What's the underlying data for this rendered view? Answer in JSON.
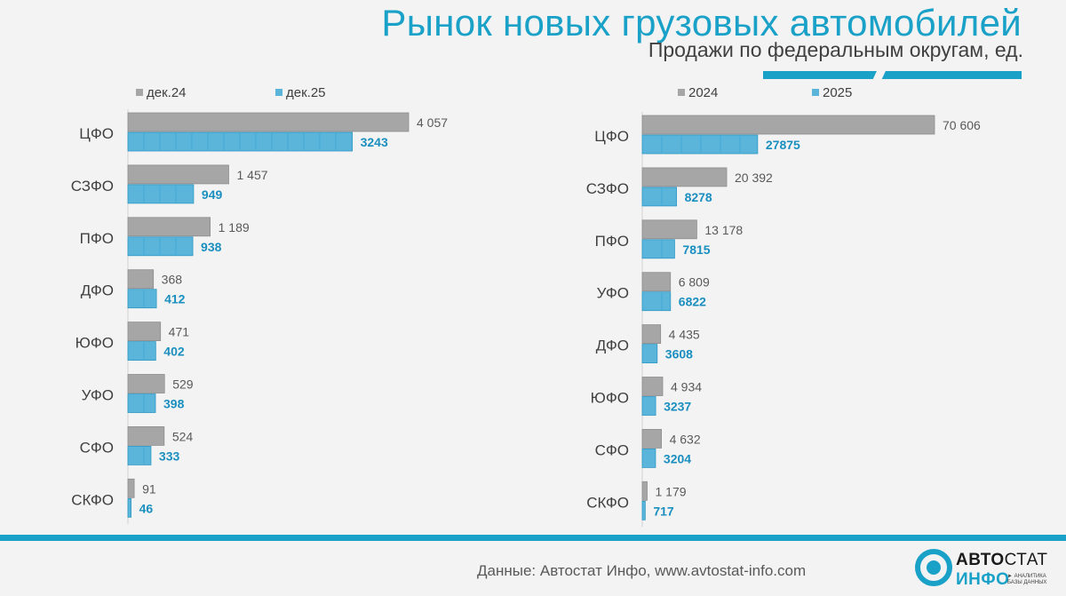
{
  "header": {
    "title": "Рынок новых грузовых автомобилей",
    "subtitle": "Продажи по федеральным округам, ед."
  },
  "colors": {
    "accent": "#1aa1c8",
    "series_prev": "#a6a6a6",
    "series_curr": "#5bb5db",
    "text": "#404040"
  },
  "chart_data": [
    {
      "type": "bar",
      "orientation": "horizontal",
      "categories": [
        "ЦФО",
        "СЗФО",
        "ПФО",
        "ДФО",
        "ЮФО",
        "УФО",
        "СФО",
        "СКФО"
      ],
      "series": [
        {
          "name": "дек.24",
          "values": [
            4057,
            1457,
            1189,
            368,
            471,
            529,
            524,
            91
          ],
          "labels": [
            "4 057",
            "1 457",
            "1 189",
            "368",
            "471",
            "529",
            "524",
            "91"
          ]
        },
        {
          "name": "дек.25",
          "values": [
            3243,
            949,
            938,
            412,
            402,
            398,
            333,
            46
          ],
          "labels": [
            "3243",
            "949",
            "938",
            "412",
            "402",
            "398",
            "333",
            "46"
          ]
        }
      ],
      "legend_position": "top-left"
    },
    {
      "type": "bar",
      "orientation": "horizontal",
      "categories": [
        "ЦФО",
        "СЗФО",
        "ПФО",
        "УФО",
        "ДФО",
        "ЮФО",
        "СФО",
        "СКФО"
      ],
      "series": [
        {
          "name": "2024",
          "values": [
            70606,
            20392,
            13178,
            6809,
            4435,
            4934,
            4632,
            1179
          ],
          "labels": [
            "70 606",
            "20 392",
            "13 178",
            "6 809",
            "4 435",
            "4 934",
            "4 632",
            "1 179"
          ]
        },
        {
          "name": "2025",
          "values": [
            27875,
            8278,
            7815,
            6822,
            3608,
            3237,
            3204,
            717
          ],
          "labels": [
            "27875",
            "8278",
            "7815",
            "6822",
            "3608",
            "3237",
            "3204",
            "717"
          ]
        }
      ],
      "legend_position": "top-left"
    }
  ],
  "footer": {
    "source": "Данные: Автостат Инфо, www.avtostat-info.com",
    "logo_top_bold": "АВТО",
    "logo_top_thin": "СТАТ",
    "logo_bottom": "ИНФО",
    "logo_tag_1": "► АНАЛИТИКА",
    "logo_tag_2": "БАЗЫ ДАННЫХ"
  }
}
